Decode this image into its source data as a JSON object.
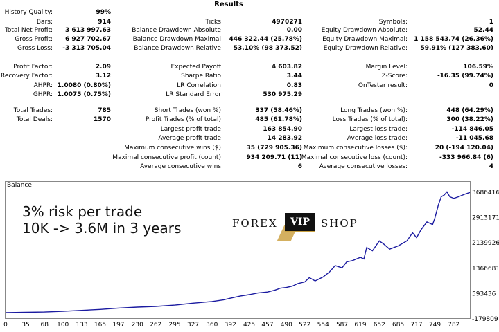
{
  "report": {
    "title": "Results",
    "rows": [
      [
        [
          "History Quality:",
          "99%"
        ],
        [
          "",
          ""
        ],
        [
          "",
          ""
        ]
      ],
      [
        [
          "Bars:",
          "914"
        ],
        [
          "Ticks:",
          "4970271"
        ],
        [
          "Symbols:",
          "1"
        ]
      ],
      [
        [
          "Total Net Profit:",
          "3 613 997.63"
        ],
        [
          "Balance Drawdown Absolute:",
          "0.00"
        ],
        [
          "Equity Drawdown Absolute:",
          "52.44"
        ]
      ],
      [
        [
          "Gross Profit:",
          "6 927 702.67"
        ],
        [
          "Balance Drawdown Maximal:",
          "446 322.44 (25.78%)"
        ],
        [
          "Equity Drawdown Maximal:",
          "1 158 543.74 (26.36%)"
        ]
      ],
      [
        [
          "Gross Loss:",
          "-3 313 705.04"
        ],
        [
          "Balance Drawdown Relative:",
          "53.10% (98 373.52)"
        ],
        [
          "Equity Drawdown Relative:",
          "59.91% (127 383.60)"
        ]
      ],
      [
        [
          "Profit Factor:",
          "2.09"
        ],
        [
          "Expected Payoff:",
          "4 603.82"
        ],
        [
          "Margin Level:",
          "106.59%"
        ]
      ],
      [
        [
          "Recovery Factor:",
          "3.12"
        ],
        [
          "Sharpe Ratio:",
          "3.44"
        ],
        [
          "Z-Score:",
          "-16.35 (99.74%)"
        ]
      ],
      [
        [
          "AHPR:",
          "1.0080 (0.80%)"
        ],
        [
          "LR Correlation:",
          "0.83"
        ],
        [
          "OnTester result:",
          "0"
        ]
      ],
      [
        [
          "GHPR:",
          "1.0075 (0.75%)"
        ],
        [
          "LR Standard Error:",
          "530 975.29"
        ],
        [
          "",
          ""
        ]
      ],
      [
        [
          "Total Trades:",
          "785"
        ],
        [
          "Short Trades (won %):",
          "337 (58.46%)"
        ],
        [
          "Long Trades (won %):",
          "448 (64.29%)"
        ]
      ],
      [
        [
          "Total Deals:",
          "1570"
        ],
        [
          "Profit Trades (% of total):",
          "485 (61.78%)"
        ],
        [
          "Loss Trades (% of total):",
          "300 (38.22%)"
        ]
      ],
      [
        [
          "",
          ""
        ],
        [
          "Largest profit trade:",
          "163 854.90"
        ],
        [
          "Largest loss trade:",
          "-114 846.05"
        ]
      ],
      [
        [
          "",
          ""
        ],
        [
          "Average profit trade:",
          "14 283.92"
        ],
        [
          "Average loss trade:",
          "-11 045.68"
        ]
      ],
      [
        [
          "",
          ""
        ],
        [
          "Maximum consecutive wins ($):",
          "35 (729 905.36)"
        ],
        [
          "Maximum consecutive losses ($):",
          "20 (-194 120.04)"
        ]
      ],
      [
        [
          "",
          ""
        ],
        [
          "Maximal consecutive profit (count):",
          "934 209.71 (11)"
        ],
        [
          "Maximal consecutive loss (count):",
          "-333 966.84 (6)"
        ]
      ],
      [
        [
          "",
          ""
        ],
        [
          "Average consecutive wins:",
          "6"
        ],
        [
          "Average consecutive losses:",
          "4"
        ]
      ]
    ]
  },
  "chart": {
    "caption": "Balance",
    "overlay_line1": "3% risk per trade",
    "overlay_line2": "10K -> 3.6M in 3 years",
    "logo_left": "FOREX",
    "logo_badge": "VIP",
    "logo_right": "SHOP"
  },
  "chart_data": {
    "type": "line",
    "x_ticks": [
      "0",
      "35",
      "68",
      "100",
      "133",
      "165",
      "197",
      "230",
      "262",
      "295",
      "327",
      "360",
      "392",
      "425",
      "457",
      "490",
      "522",
      "554",
      "587",
      "619",
      "652",
      "685",
      "717",
      "749",
      "782"
    ],
    "y_ticks": [
      "3686416",
      "2913171",
      "2139926",
      "1366681",
      "593436",
      "-179809"
    ],
    "ylim": [
      -179809,
      3686416
    ],
    "xlim": [
      0,
      810
    ],
    "color": "#1a1aa0",
    "series": [
      {
        "x": [
          0,
          35,
          68,
          100,
          133,
          165,
          197,
          230,
          262,
          295,
          327,
          360,
          380,
          392,
          410,
          425,
          440,
          457,
          470,
          480,
          490,
          500,
          510,
          522,
          530,
          540,
          554,
          565,
          575,
          587,
          595,
          605,
          619,
          625,
          630,
          640,
          652,
          660,
          670,
          685,
          700,
          710,
          717,
          725,
          735,
          745,
          749,
          755,
          760,
          765,
          770,
          775,
          782,
          790,
          800,
          810
        ],
        "y": [
          10000,
          20000,
          30000,
          50000,
          80000,
          110000,
          150000,
          180000,
          200000,
          240000,
          300000,
          350000,
          400000,
          450000,
          520000,
          560000,
          610000,
          640000,
          700000,
          760000,
          780000,
          820000,
          900000,
          950000,
          1080000,
          980000,
          1100000,
          1250000,
          1450000,
          1380000,
          1560000,
          1600000,
          1700000,
          1650000,
          2000000,
          1900000,
          2200000,
          2100000,
          1950000,
          2050000,
          2200000,
          2450000,
          2300000,
          2550000,
          2780000,
          2700000,
          2900000,
          3300000,
          3550000,
          3600000,
          3700000,
          3550000,
          3500000,
          3550000,
          3620000,
          3680000
        ]
      }
    ]
  }
}
